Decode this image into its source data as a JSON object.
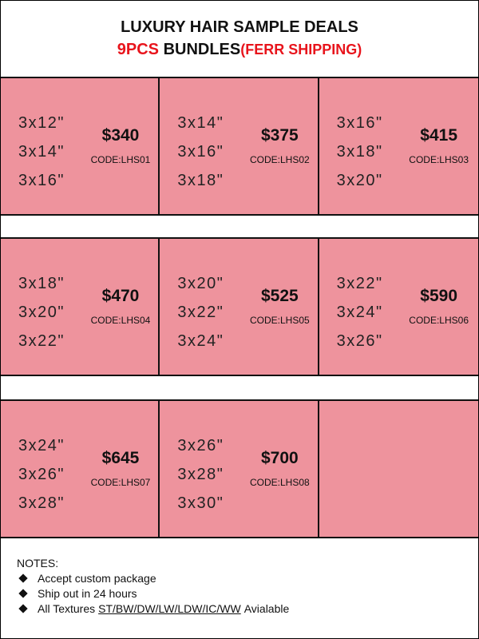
{
  "header": {
    "title": "LUXURY HAIR SAMPLE DEALS",
    "subtitle": {
      "count": "9PCS",
      "bundles": "BUNDLES",
      "shipping": "(FERR SHIPPING)"
    }
  },
  "deals": [
    {
      "lengths": [
        "3x12\"",
        "3x14\"",
        "3x16\""
      ],
      "price": "$340",
      "code": "CODE:LHS01"
    },
    {
      "lengths": [
        "3x14\"",
        "3x16\"",
        "3x18\""
      ],
      "price": "$375",
      "code": "CODE:LHS02"
    },
    {
      "lengths": [
        "3x16\"",
        "3x18\"",
        "3x20\""
      ],
      "price": "$415",
      "code": "CODE:LHS03"
    },
    {
      "lengths": [
        "3x18\"",
        "3x20\"",
        "3x22\""
      ],
      "price": "$470",
      "code": "CODE:LHS04"
    },
    {
      "lengths": [
        "3x20\"",
        "3x22\"",
        "3x24\""
      ],
      "price": "$525",
      "code": "CODE:LHS05"
    },
    {
      "lengths": [
        "3x22\"",
        "3x24\"",
        "3x26\""
      ],
      "price": "$590",
      "code": "CODE:LHS06"
    },
    {
      "lengths": [
        "3x24\"",
        "3x26\"",
        "3x28\""
      ],
      "price": "$645",
      "code": "CODE:LHS07"
    },
    {
      "lengths": [
        "3x26\"",
        "3x28\"",
        "3x30\""
      ],
      "price": "$700",
      "code": "CODE:LHS08"
    }
  ],
  "notes": {
    "heading": "NOTES:",
    "items": [
      {
        "text": "Accept custom package"
      },
      {
        "text": "Ship out in 24 hours"
      },
      {
        "prefix": "All Textures",
        "textures": "ST/BW/DW/LW/LDW/IC/WW",
        "suffix": "Avialable"
      }
    ]
  }
}
